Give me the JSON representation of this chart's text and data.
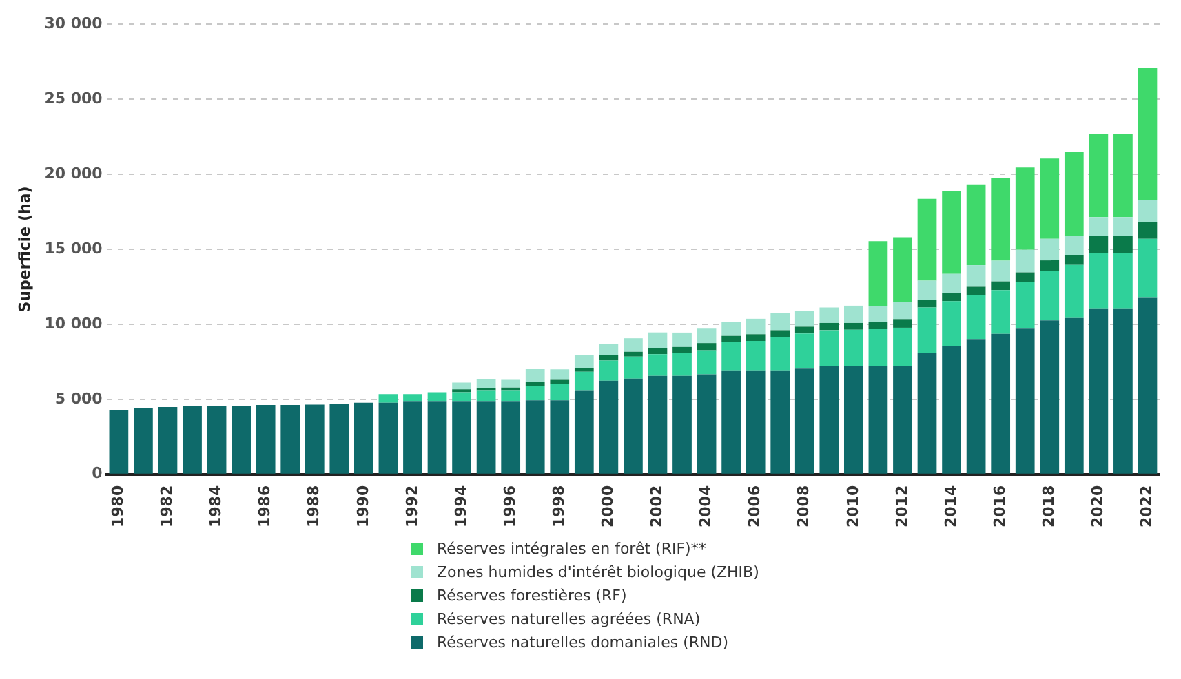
{
  "chart_data": {
    "type": "bar",
    "stacked": true,
    "ylabel": "Superficie (ha)",
    "categories": [
      "1980",
      null,
      "1982",
      null,
      "1984",
      null,
      "1986",
      null,
      "1988",
      null,
      "1990",
      null,
      "1992",
      null,
      "1994",
      null,
      "1996",
      null,
      "1998",
      null,
      "2000",
      null,
      "2002",
      null,
      "2004",
      null,
      "2006",
      null,
      "2008",
      null,
      "2010",
      null,
      "2012",
      null,
      "2014",
      null,
      "2016",
      null,
      "2018",
      null,
      "2020",
      null,
      "2022"
    ],
    "series": [
      {
        "name": "Réserves naturelles domaniales (RND)",
        "color": "#0e6a6a",
        "values": [
          4300,
          4400,
          4490,
          4550,
          4550,
          4550,
          4620,
          4620,
          4650,
          4710,
          4780,
          4780,
          4840,
          4840,
          4840,
          4840,
          4840,
          4940,
          4940,
          5570,
          6240,
          6380,
          6570,
          6570,
          6670,
          6890,
          6890,
          6890,
          7050,
          7210,
          7210,
          7210,
          7210,
          8110,
          8560,
          8970,
          9360,
          9710,
          10260,
          10420,
          11060,
          11060,
          11760
        ]
      },
      {
        "name": "Réserves naturelles agréées (RNA)",
        "color": "#2fd19a",
        "values": [
          0,
          0,
          0,
          0,
          0,
          0,
          0,
          0,
          0,
          0,
          0,
          570,
          510,
          640,
          640,
          730,
          730,
          960,
          1110,
          1270,
          1350,
          1470,
          1440,
          1540,
          1600,
          1920,
          2000,
          2240,
          2340,
          2400,
          2430,
          2460,
          2560,
          3010,
          2980,
          2950,
          2920,
          3110,
          3300,
          3530,
          3690,
          3690,
          3940
        ]
      },
      {
        "name": "Réserves forestières (RF)",
        "color": "#0a7a4a",
        "values": [
          0,
          0,
          0,
          0,
          0,
          0,
          0,
          0,
          0,
          0,
          0,
          0,
          0,
          0,
          190,
          160,
          220,
          250,
          250,
          220,
          380,
          320,
          420,
          380,
          480,
          420,
          450,
          480,
          450,
          480,
          450,
          480,
          580,
          510,
          540,
          580,
          580,
          640,
          700,
          640,
          1120,
          1120,
          1120
        ]
      },
      {
        "name": "Zones humides d'intérêt biologique (ZHIB)",
        "color": "#9fe3d0",
        "values": [
          0,
          0,
          0,
          0,
          0,
          0,
          0,
          0,
          0,
          0,
          0,
          0,
          0,
          0,
          450,
          640,
          510,
          860,
          700,
          890,
          740,
          900,
          1030,
          960,
          960,
          930,
          1030,
          1120,
          1030,
          1030,
          1150,
          1060,
          1120,
          1280,
          1280,
          1440,
          1380,
          1510,
          1440,
          1280,
          1280,
          1280,
          1440
        ]
      },
      {
        "name": "Réserves intégrales en forêt (RIF)**",
        "color": "#3fd96b",
        "values": [
          0,
          0,
          0,
          0,
          0,
          0,
          0,
          0,
          0,
          0,
          0,
          0,
          0,
          0,
          0,
          0,
          0,
          0,
          0,
          0,
          0,
          0,
          0,
          0,
          0,
          0,
          0,
          0,
          0,
          0,
          0,
          4330,
          4330,
          5450,
          5540,
          5380,
          5510,
          5480,
          5350,
          5610,
          5540,
          5540,
          8810
        ]
      }
    ],
    "ylim": [
      0,
      30000
    ],
    "yticks": [
      0,
      {
        "value": 5000,
        "label": "5 000"
      },
      {
        "value": 10000,
        "label": "10 000"
      },
      {
        "value": 15000,
        "label": "15 000"
      },
      {
        "value": 20000,
        "label": "20 000"
      },
      {
        "value": 25000,
        "label": "25 000"
      },
      {
        "value": 30000,
        "label": "30 000"
      }
    ],
    "grid": "y",
    "legend": "bottom"
  }
}
